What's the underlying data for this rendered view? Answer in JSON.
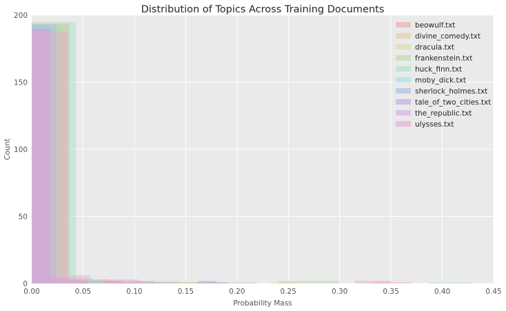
{
  "chart_data": {
    "type": "histogram",
    "title": "Distribution of Topics Across Training Documents",
    "xlabel": "Probability Mass",
    "ylabel": "Count",
    "xlim": [
      0,
      0.45
    ],
    "ylim": [
      0,
      200
    ],
    "x_ticks": [
      "0.00",
      "0.05",
      "0.10",
      "0.15",
      "0.20",
      "0.25",
      "0.30",
      "0.35",
      "0.40",
      "0.45"
    ],
    "y_ticks": [
      "0",
      "50",
      "100",
      "150",
      "200"
    ],
    "grid": true,
    "legend_position": "top-right",
    "series": [
      {
        "name": "beowulf.txt",
        "color": "#e8a6a6",
        "bins": [
          [
            0.0,
            0.037,
            194
          ],
          [
            0.037,
            0.074,
            3
          ],
          [
            0.074,
            0.111,
            1
          ],
          [
            0.111,
            0.148,
            1
          ],
          [
            0.148,
            0.185,
            1
          ],
          [
            0.333,
            0.37,
            1
          ]
        ]
      },
      {
        "name": "divine_comedy.txt",
        "color": "#e6c99a",
        "bins": [
          [
            0.0,
            0.036,
            193
          ],
          [
            0.036,
            0.072,
            3
          ],
          [
            0.072,
            0.108,
            2
          ],
          [
            0.144,
            0.18,
            1
          ],
          [
            0.18,
            0.216,
            1
          ]
        ]
      },
      {
        "name": "dracula.txt",
        "color": "#d9dca0",
        "bins": [
          [
            0.0,
            0.029,
            192
          ],
          [
            0.029,
            0.058,
            3
          ],
          [
            0.058,
            0.087,
            2
          ],
          [
            0.116,
            0.145,
            2
          ],
          [
            0.232,
            0.261,
            1
          ]
        ]
      },
      {
        "name": "frankenstein.txt",
        "color": "#b3dba3",
        "bins": [
          [
            0.0,
            0.03,
            192
          ],
          [
            0.03,
            0.06,
            4
          ],
          [
            0.09,
            0.12,
            1
          ],
          [
            0.12,
            0.15,
            1
          ],
          [
            0.24,
            0.3,
            2
          ]
        ]
      },
      {
        "name": "huck_finn.txt",
        "color": "#a6e3c3",
        "bins": [
          [
            0.0,
            0.043,
            195
          ],
          [
            0.043,
            0.086,
            2
          ],
          [
            0.086,
            0.129,
            1
          ],
          [
            0.129,
            0.172,
            1
          ],
          [
            0.387,
            0.43,
            1
          ]
        ]
      },
      {
        "name": "moby_dick.txt",
        "color": "#a6dde3",
        "bins": [
          [
            0.0,
            0.022,
            192
          ],
          [
            0.022,
            0.044,
            3
          ],
          [
            0.044,
            0.066,
            3
          ],
          [
            0.11,
            0.132,
            1
          ],
          [
            0.198,
            0.22,
            1
          ]
        ]
      },
      {
        "name": "sherlock_holmes.txt",
        "color": "#a6b8e3",
        "bins": [
          [
            0.0,
            0.024,
            193
          ],
          [
            0.024,
            0.048,
            2
          ],
          [
            0.048,
            0.072,
            2
          ],
          [
            0.096,
            0.12,
            2
          ],
          [
            0.168,
            0.192,
            1
          ]
        ]
      },
      {
        "name": "tale_of_two_cities.txt",
        "color": "#b9a3e3",
        "bins": [
          [
            0.0,
            0.018,
            190
          ],
          [
            0.018,
            0.036,
            4
          ],
          [
            0.036,
            0.054,
            2
          ],
          [
            0.072,
            0.09,
            2
          ],
          [
            0.162,
            0.18,
            2
          ]
        ]
      },
      {
        "name": "the_republic.txt",
        "color": "#d6a6e3",
        "bins": [
          [
            0.0,
            0.017,
            189
          ],
          [
            0.017,
            0.034,
            5
          ],
          [
            0.034,
            0.051,
            3
          ],
          [
            0.068,
            0.085,
            2
          ],
          [
            0.085,
            0.102,
            1
          ]
        ]
      },
      {
        "name": "ulysses.txt",
        "color": "#e8a6c9",
        "bins": [
          [
            0.0,
            0.035,
            188
          ],
          [
            0.035,
            0.057,
            6
          ],
          [
            0.07,
            0.105,
            3
          ],
          [
            0.105,
            0.14,
            1
          ],
          [
            0.315,
            0.35,
            2
          ]
        ]
      }
    ]
  }
}
